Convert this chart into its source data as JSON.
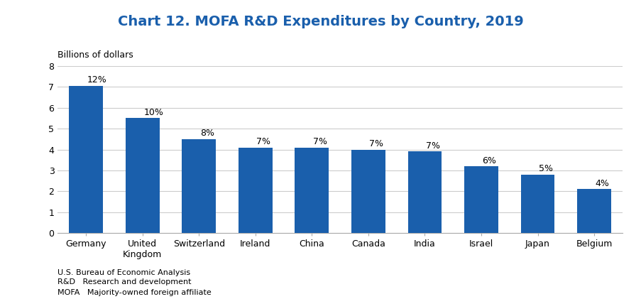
{
  "title": "Chart 12. MOFA R&D Expenditures by Country, 2019",
  "title_color": "#1a5fac",
  "ylabel": "Billions of dollars",
  "categories": [
    "Germany",
    "United\nKingdom",
    "Switzerland",
    "Ireland",
    "China",
    "Canada",
    "India",
    "Israel",
    "Japan",
    "Belgium"
  ],
  "values": [
    7.05,
    5.5,
    4.5,
    4.1,
    4.1,
    4.0,
    3.9,
    3.2,
    2.8,
    2.1
  ],
  "labels": [
    "12%",
    "10%",
    "8%",
    "7%",
    "7%",
    "7%",
    "7%",
    "6%",
    "5%",
    "4%"
  ],
  "bar_color": "#1a5fac",
  "ylim": [
    0,
    8
  ],
  "yticks": [
    0,
    1,
    2,
    3,
    4,
    5,
    6,
    7,
    8
  ],
  "grid_color": "#cccccc",
  "background_color": "#ffffff",
  "footnote_lines": [
    "MOFA   Majority-owned foreign affiliate",
    "R&D   Research and development",
    "",
    "U.S. Bureau of Economic Analysis"
  ],
  "label_fontsize": 9,
  "title_fontsize": 14,
  "ylabel_fontsize": 9,
  "tick_fontsize": 9,
  "footnote_fontsize": 8
}
